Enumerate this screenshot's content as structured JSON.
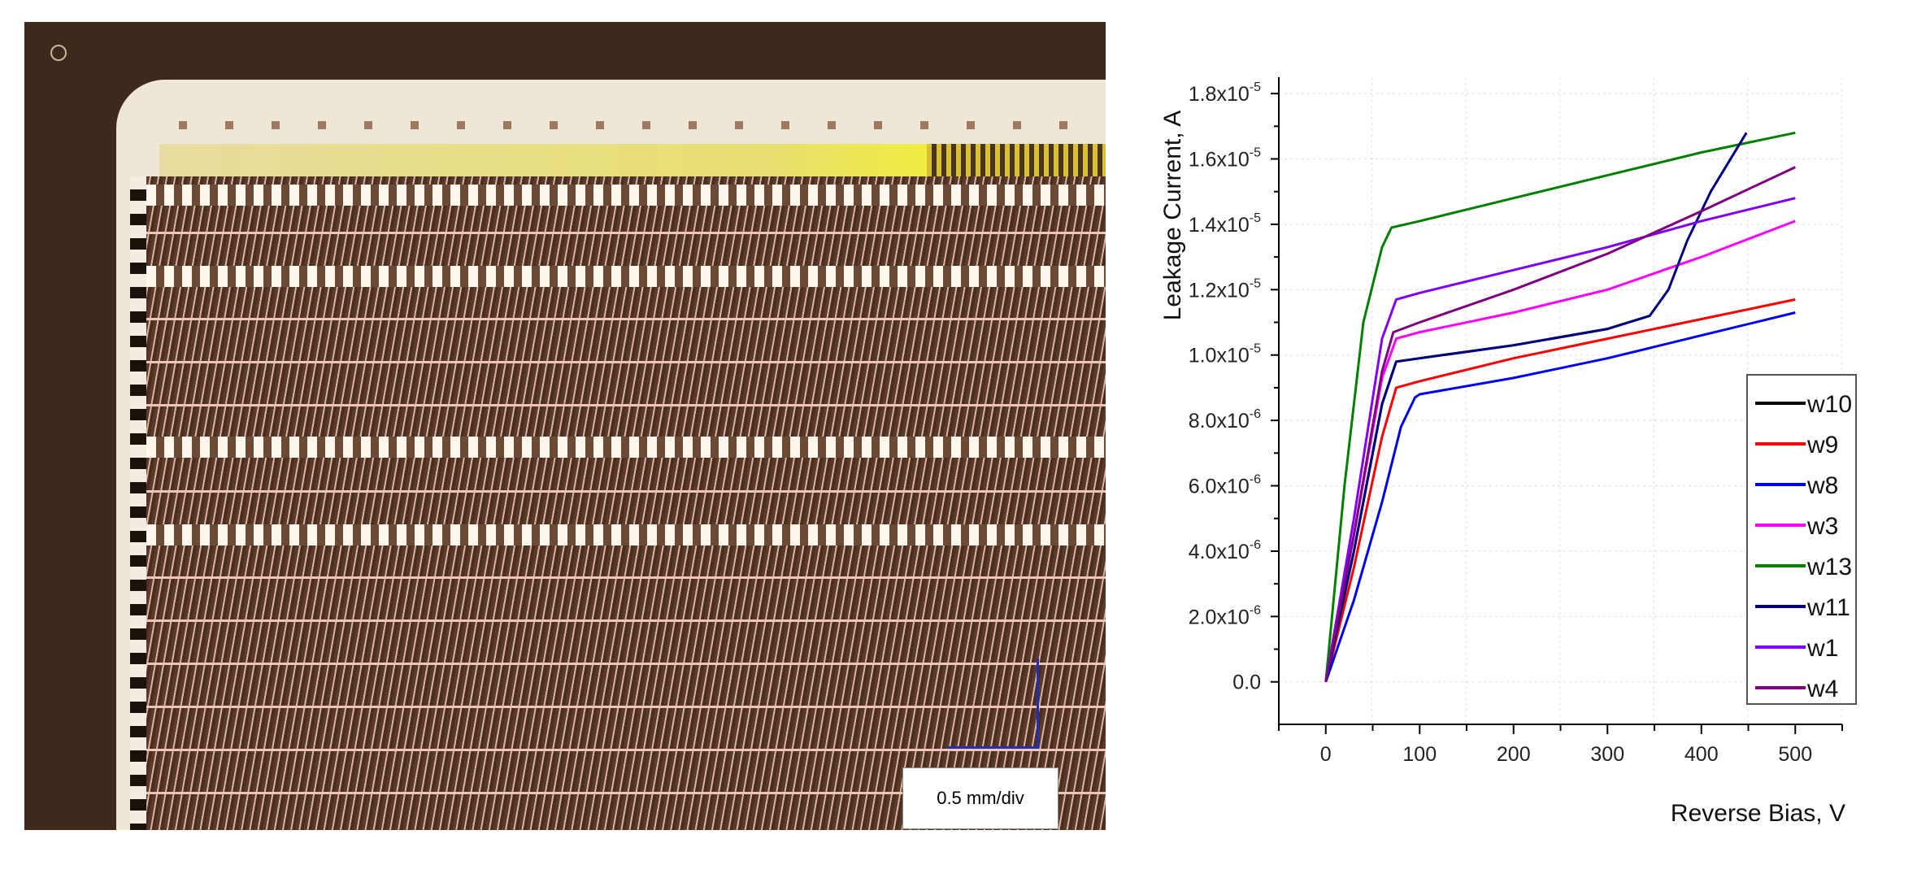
{
  "photo": {
    "scale_caption": "0.5 mm/div",
    "scale_color": "#2030b0"
  },
  "chart_data": {
    "type": "line",
    "title": "",
    "xlabel": "Reverse Bias, V",
    "ylabel": "Leakage Current, A",
    "xlim": [
      -50,
      550
    ],
    "ylim": [
      -1.3e-06,
      1.85e-05
    ],
    "x_ticks": [
      0,
      100,
      200,
      300,
      400,
      500
    ],
    "x_tick_labels": [
      "0",
      "100",
      "200",
      "300",
      "400",
      "500"
    ],
    "y_ticks": [
      0,
      2e-06,
      4e-06,
      6e-06,
      8e-06,
      1e-05,
      1.2e-05,
      1.4e-05,
      1.6e-05,
      1.8e-05
    ],
    "y_tick_labels": [
      {
        "base": "0.0",
        "exp": ""
      },
      {
        "base": "2.0x10",
        "exp": "-6"
      },
      {
        "base": "4.0x10",
        "exp": "-6"
      },
      {
        "base": "6.0x10",
        "exp": "-6"
      },
      {
        "base": "8.0x10",
        "exp": "-6"
      },
      {
        "base": "1.0x10",
        "exp": "-5"
      },
      {
        "base": "1.2x10",
        "exp": "-5"
      },
      {
        "base": "1.4x10",
        "exp": "-5"
      },
      {
        "base": "1.6x10",
        "exp": "-5"
      },
      {
        "base": "1.8x10",
        "exp": "-5"
      }
    ],
    "grid": true,
    "legend_position": "bottom-right",
    "series": [
      {
        "name": "w10",
        "color": "#000000",
        "points": [
          [
            0,
            0
          ],
          [
            30,
            4e-06
          ],
          [
            60,
            8.5e-06
          ],
          [
            75,
            9.8e-06
          ],
          [
            100,
            9.9e-06
          ],
          [
            200,
            1.03e-05
          ],
          [
            300,
            1.08e-05
          ],
          [
            345,
            1.12e-05
          ]
        ]
      },
      {
        "name": "w9",
        "color": "#ff0000",
        "points": [
          [
            0,
            0
          ],
          [
            30,
            3.5e-06
          ],
          [
            60,
            7.5e-06
          ],
          [
            75,
            9e-06
          ],
          [
            100,
            9.2e-06
          ],
          [
            200,
            9.9e-06
          ],
          [
            300,
            1.05e-05
          ],
          [
            400,
            1.11e-05
          ],
          [
            500,
            1.17e-05
          ]
        ]
      },
      {
        "name": "w8",
        "color": "#0000ff",
        "points": [
          [
            0,
            0
          ],
          [
            30,
            2.5e-06
          ],
          [
            60,
            5.5e-06
          ],
          [
            80,
            7.8e-06
          ],
          [
            95,
            8.7e-06
          ],
          [
            100,
            8.8e-06
          ],
          [
            200,
            9.3e-06
          ],
          [
            300,
            9.9e-06
          ],
          [
            400,
            1.06e-05
          ],
          [
            500,
            1.13e-05
          ]
        ]
      },
      {
        "name": "w3",
        "color": "#ff00ff",
        "points": [
          [
            0,
            0
          ],
          [
            30,
            4.5e-06
          ],
          [
            60,
            9.3e-06
          ],
          [
            75,
            1.05e-05
          ],
          [
            100,
            1.07e-05
          ],
          [
            200,
            1.13e-05
          ],
          [
            300,
            1.2e-05
          ],
          [
            400,
            1.3e-05
          ],
          [
            500,
            1.41e-05
          ]
        ]
      },
      {
        "name": "w13",
        "color": "#008000",
        "points": [
          [
            0,
            0
          ],
          [
            20,
            6e-06
          ],
          [
            40,
            1.1e-05
          ],
          [
            60,
            1.33e-05
          ],
          [
            70,
            1.39e-05
          ],
          [
            100,
            1.41e-05
          ],
          [
            200,
            1.48e-05
          ],
          [
            300,
            1.55e-05
          ],
          [
            400,
            1.62e-05
          ],
          [
            500,
            1.68e-05
          ]
        ]
      },
      {
        "name": "w11",
        "color": "#000080",
        "points": [
          [
            0,
            0
          ],
          [
            30,
            4e-06
          ],
          [
            60,
            8.5e-06
          ],
          [
            75,
            9.8e-06
          ],
          [
            100,
            9.9e-06
          ],
          [
            200,
            1.03e-05
          ],
          [
            300,
            1.08e-05
          ],
          [
            345,
            1.12e-05
          ],
          [
            365,
            1.2e-05
          ],
          [
            385,
            1.35e-05
          ],
          [
            410,
            1.5e-05
          ],
          [
            448,
            1.68e-05
          ]
        ]
      },
      {
        "name": "w1",
        "color": "#8000ff",
        "points": [
          [
            0,
            0
          ],
          [
            30,
            5e-06
          ],
          [
            60,
            1.05e-05
          ],
          [
            75,
            1.17e-05
          ],
          [
            100,
            1.19e-05
          ],
          [
            200,
            1.26e-05
          ],
          [
            300,
            1.33e-05
          ],
          [
            400,
            1.41e-05
          ],
          [
            500,
            1.48e-05
          ]
        ]
      },
      {
        "name": "w4",
        "color": "#800080",
        "points": [
          [
            0,
            0
          ],
          [
            30,
            4.5e-06
          ],
          [
            60,
            9.5e-06
          ],
          [
            72,
            1.07e-05
          ],
          [
            100,
            1.1e-05
          ],
          [
            200,
            1.2e-05
          ],
          [
            300,
            1.31e-05
          ],
          [
            400,
            1.44e-05
          ],
          [
            500,
            1.575e-05
          ]
        ]
      }
    ]
  }
}
